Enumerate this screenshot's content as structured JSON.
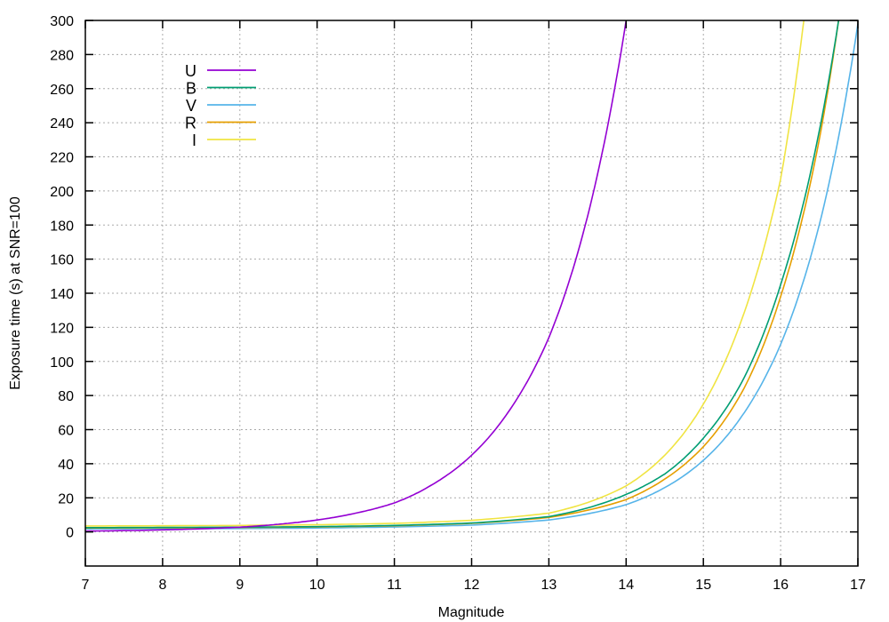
{
  "chart_data": {
    "type": "line",
    "title": "",
    "xlabel": "Magnitude",
    "ylabel": "Exposure time (s) at SNR=100",
    "xlim": [
      7,
      17
    ],
    "ylim": [
      -20,
      300
    ],
    "grid": true,
    "legend_position": "upper-left",
    "x_ticks": [
      7,
      8,
      9,
      10,
      11,
      12,
      13,
      14,
      15,
      16,
      17
    ],
    "y_ticks": [
      0,
      20,
      40,
      60,
      80,
      100,
      120,
      140,
      160,
      180,
      200,
      220,
      240,
      260,
      280,
      300
    ],
    "x": [
      7,
      8,
      9,
      10,
      11,
      12,
      13,
      14,
      15,
      16,
      17
    ],
    "series": [
      {
        "name": "U",
        "color": "#9400d3",
        "x": [
          7,
          8,
          9,
          9.5,
          10,
          10.5,
          11,
          11.5,
          12,
          12.5,
          13,
          13.5,
          14
        ],
        "values": [
          0.5,
          1.2,
          2.8,
          4.5,
          7,
          11,
          17,
          28,
          45,
          72,
          114,
          185,
          300
        ]
      },
      {
        "name": "B",
        "color": "#009e73",
        "x": [
          7,
          8,
          9,
          10,
          11,
          12,
          13,
          14,
          14.5,
          15,
          15.5,
          16,
          16.5,
          16.75
        ],
        "values": [
          2.5,
          2.6,
          2.8,
          3.1,
          3.8,
          5.2,
          9,
          22,
          34,
          55,
          88,
          145,
          235,
          300
        ]
      },
      {
        "name": "V",
        "color": "#56b4e9",
        "x": [
          7,
          8,
          9,
          10,
          11,
          12,
          13,
          14,
          14.5,
          15,
          15.5,
          16,
          16.5,
          17
        ],
        "values": [
          1.8,
          1.9,
          2.0,
          2.3,
          2.9,
          4.0,
          7,
          16,
          26,
          42,
          68,
          110,
          180,
          298
        ]
      },
      {
        "name": "R",
        "color": "#e69f00",
        "x": [
          7,
          8,
          9,
          10,
          11,
          12,
          13,
          14,
          14.5,
          15,
          15.5,
          16,
          16.5,
          16.75
        ],
        "values": [
          2.3,
          2.4,
          2.6,
          2.9,
          3.6,
          5.0,
          8.5,
          19,
          31,
          50,
          82,
          138,
          230,
          300
        ]
      },
      {
        "name": "I",
        "color": "#f0e442",
        "x": [
          7,
          8,
          9,
          10,
          11,
          12,
          13,
          14,
          14.5,
          15,
          15.5,
          16,
          16.3
        ],
        "values": [
          3.5,
          3.6,
          3.8,
          4.2,
          5.0,
          6.8,
          11,
          27,
          45,
          75,
          125,
          207,
          300
        ]
      }
    ]
  },
  "legend": {
    "items": [
      {
        "label": "U",
        "color": "#9400d3"
      },
      {
        "label": "B",
        "color": "#009e73"
      },
      {
        "label": "V",
        "color": "#56b4e9"
      },
      {
        "label": "R",
        "color": "#e69f00"
      },
      {
        "label": "I",
        "color": "#f0e442"
      }
    ]
  }
}
